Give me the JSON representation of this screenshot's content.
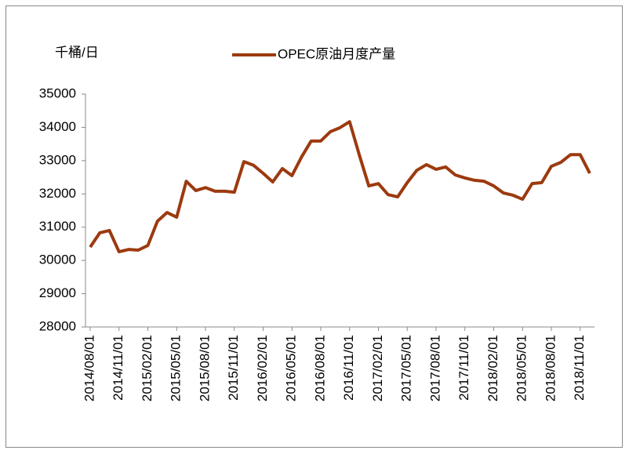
{
  "chart_data": {
    "type": "line",
    "y_unit_label": "千桶/日",
    "categories": [
      "2014/08/01",
      null,
      null,
      "2014/11/01",
      null,
      null,
      "2015/02/01",
      null,
      null,
      "2015/05/01",
      null,
      null,
      "2015/08/01",
      null,
      null,
      "2015/11/01",
      null,
      null,
      "2016/02/01",
      null,
      null,
      "2016/05/01",
      null,
      null,
      "2016/08/01",
      null,
      null,
      "2016/11/01",
      null,
      null,
      "2017/02/01",
      null,
      null,
      "2017/05/01",
      null,
      null,
      "2017/08/01",
      null,
      null,
      "2017/11/01",
      null,
      null,
      "2018/02/01",
      null,
      null,
      "2018/05/01",
      null,
      null,
      "2018/08/01",
      null,
      null,
      "2018/11/01",
      null
    ],
    "series": [
      {
        "name": "OPEC原油月度产量",
        "color": "#9c3a0f",
        "values": [
          30400,
          30830,
          30900,
          30260,
          30330,
          30310,
          30450,
          31180,
          31440,
          31300,
          32380,
          32100,
          32190,
          32080,
          32080,
          32050,
          32970,
          32860,
          32620,
          32360,
          32760,
          32550,
          33110,
          33590,
          33590,
          33870,
          33990,
          34170,
          33180,
          32240,
          32310,
          31980,
          31910,
          32340,
          32710,
          32880,
          32740,
          32810,
          32570,
          32480,
          32410,
          32380,
          32240,
          32030,
          31960,
          31840,
          32310,
          32340,
          32830,
          32950,
          33180,
          33180,
          32620
        ]
      }
    ],
    "ylim": [
      28000,
      35000
    ],
    "yticks": [
      28000,
      29000,
      30000,
      31000,
      32000,
      33000,
      34000,
      35000
    ],
    "grid": false
  }
}
